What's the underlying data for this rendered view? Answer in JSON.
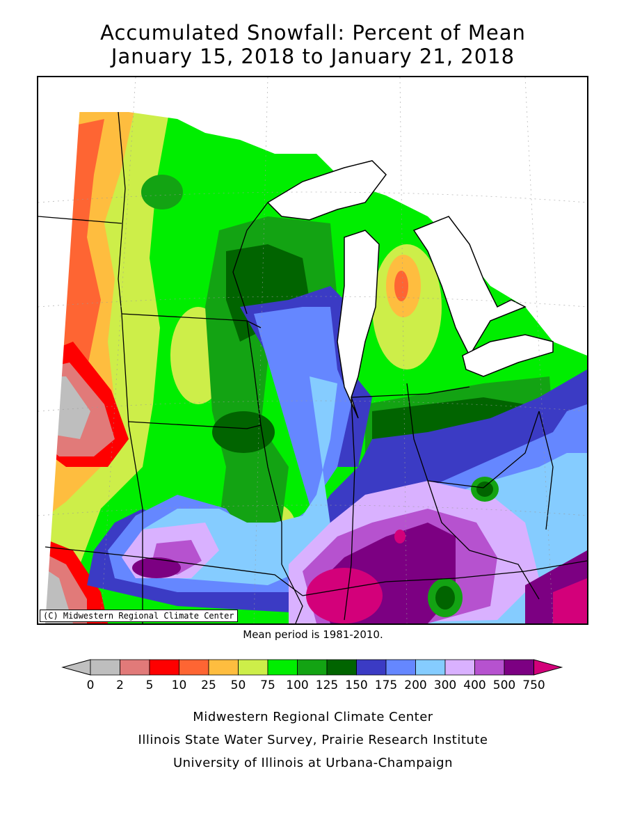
{
  "title": {
    "line1": "Accumulated Snowfall: Percent of Mean",
    "line2": "January 15, 2018 to January 21, 2018"
  },
  "map": {
    "copyright": "(C) Midwestern Regional Climate Center"
  },
  "mean_period": "Mean period is 1981-2010.",
  "legend": {
    "labels": [
      "0",
      "2",
      "5",
      "10",
      "25",
      "50",
      "75",
      "100",
      "125",
      "150",
      "175",
      "200",
      "300",
      "400",
      "500",
      "750"
    ],
    "colors": {
      "under": "#c0c0c0",
      "bins": [
        "#bebebe",
        "#e17a79",
        "#fe0000",
        "#fe6533",
        "#febd3f",
        "#cdee49",
        "#00ee00",
        "#13a313",
        "#016400",
        "#3b3bc4",
        "#6587ff",
        "#85ccff",
        "#d9b1ff",
        "#b652cf",
        "#7c0082"
      ],
      "over": "#d3007a"
    }
  },
  "credits": {
    "line1": "Midwestern Regional Climate Center",
    "line2": "Illinois State Water Survey, Prairie Research Institute",
    "line3": "University of Illinois at Urbana-Champaign"
  }
}
